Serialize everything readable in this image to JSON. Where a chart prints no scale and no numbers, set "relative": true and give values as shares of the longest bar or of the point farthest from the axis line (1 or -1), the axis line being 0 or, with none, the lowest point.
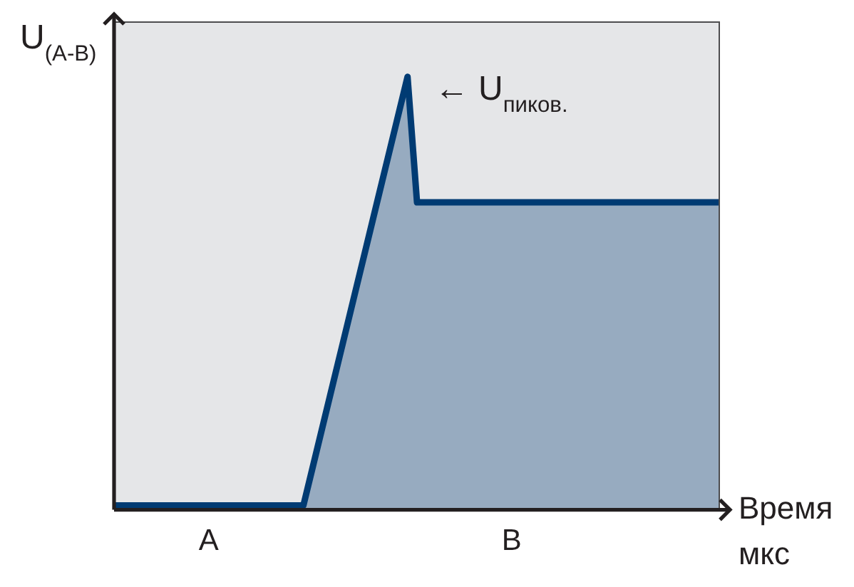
{
  "chart_data": {
    "type": "area",
    "relative": true,
    "marker": "none",
    "color": "#003b73",
    "categories": [
      null,
      null,
      null,
      null,
      null,
      null,
      null,
      null,
      null,
      null,
      "A",
      null,
      null,
      null,
      null,
      null,
      null,
      null,
      null,
      null,
      null,
      null,
      null,
      null,
      null,
      null,
      null,
      null,
      null,
      null,
      null,
      null,
      null,
      null,
      null,
      null,
      null,
      null,
      null,
      null,
      null,
      null,
      "B",
      null,
      null,
      null,
      null,
      null,
      null,
      null,
      null,
      null,
      null,
      null,
      null,
      null,
      null,
      null,
      null,
      null,
      null,
      null,
      null,
      null,
      null
    ],
    "values": [
      0.01,
      0.01,
      0.01,
      0.01,
      0.01,
      0.01,
      0.01,
      0.01,
      0.01,
      0.01,
      0.01,
      0.01,
      0.01,
      0.01,
      0.01,
      0.01,
      0.01,
      0.01,
      0.01,
      0.01,
      0.01,
      0.1,
      0.19,
      0.28,
      0.37,
      0.46,
      0.55,
      0.64,
      0.73,
      0.82,
      0.91,
      1,
      0.71,
      0.71,
      0.71,
      0.71,
      0.71,
      0.71,
      0.71,
      0.71,
      0.71,
      0.71,
      0.71,
      0.71,
      0.71,
      0.71,
      0.71,
      0.71,
      0.71,
      0.71,
      0.71,
      0.71,
      0.71,
      0.71,
      0.71,
      0.71,
      0.71,
      0.71,
      0.71,
      0.71,
      0.71,
      0.71,
      0.71,
      0.71,
      0.71
    ],
    "ylabel": "U$_{(A-B)}$",
    "xlabel": "Время мкс",
    "annotations": [
      "← U$_{пиков.}$"
    ]
  }
}
